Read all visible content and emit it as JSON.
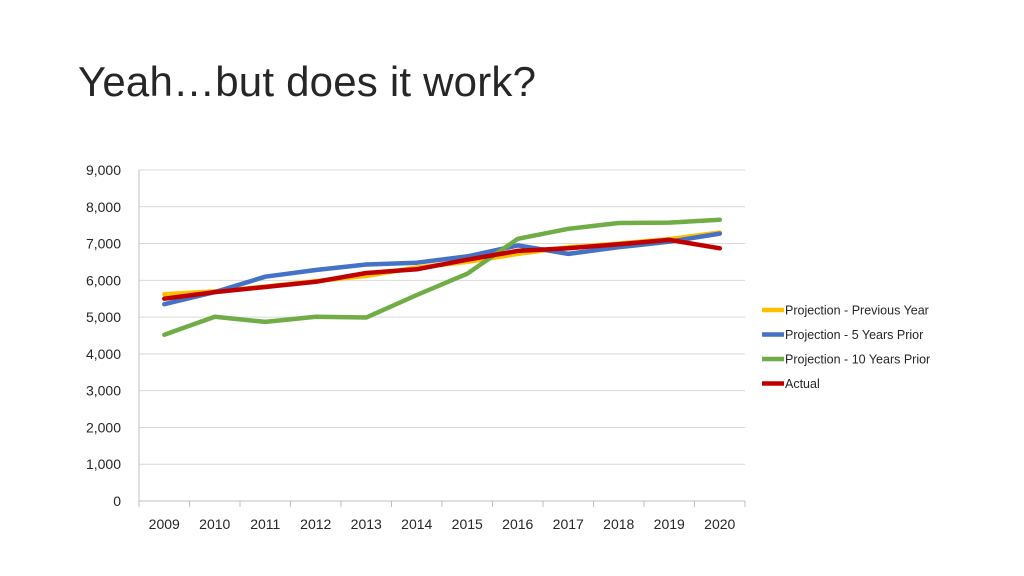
{
  "slide": {
    "title": "Yeah…but does it work?"
  },
  "chart_data": {
    "type": "line",
    "title": "",
    "xlabel": "",
    "ylabel": "",
    "x": [
      "2009",
      "2010",
      "2011",
      "2012",
      "2013",
      "2014",
      "2015",
      "2016",
      "2017",
      "2018",
      "2019",
      "2020"
    ],
    "ylim": [
      0,
      9000
    ],
    "yticks": [
      0,
      1000,
      2000,
      3000,
      4000,
      5000,
      6000,
      7000,
      8000,
      9000
    ],
    "ytick_labels": [
      "0",
      "1,000",
      "2,000",
      "3,000",
      "4,000",
      "5,000",
      "6,000",
      "7,000",
      "8,000",
      "9,000"
    ],
    "grid": "horizontal",
    "legend": "right",
    "series": [
      {
        "name": "Projection - Previous Year",
        "color": "#FFC000",
        "values": [
          5620,
          5700,
          5830,
          5980,
          6120,
          6350,
          6500,
          6720,
          6900,
          7000,
          7120,
          7300
        ]
      },
      {
        "name": "Projection - 5 Years Prior",
        "color": "#4472C4",
        "values": [
          5350,
          5680,
          6100,
          6280,
          6430,
          6480,
          6650,
          6950,
          6720,
          6900,
          7050,
          7270
        ]
      },
      {
        "name": "Projection - 10 Years Prior",
        "color": "#70AD47",
        "values": [
          4520,
          5010,
          4870,
          5010,
          4990,
          5600,
          6180,
          7130,
          7400,
          7560,
          7570,
          7650
        ]
      },
      {
        "name": "Actual",
        "color": "#C00000",
        "values": [
          5500,
          5680,
          5820,
          5960,
          6200,
          6300,
          6560,
          6800,
          6870,
          6980,
          7100,
          6870
        ]
      }
    ]
  }
}
